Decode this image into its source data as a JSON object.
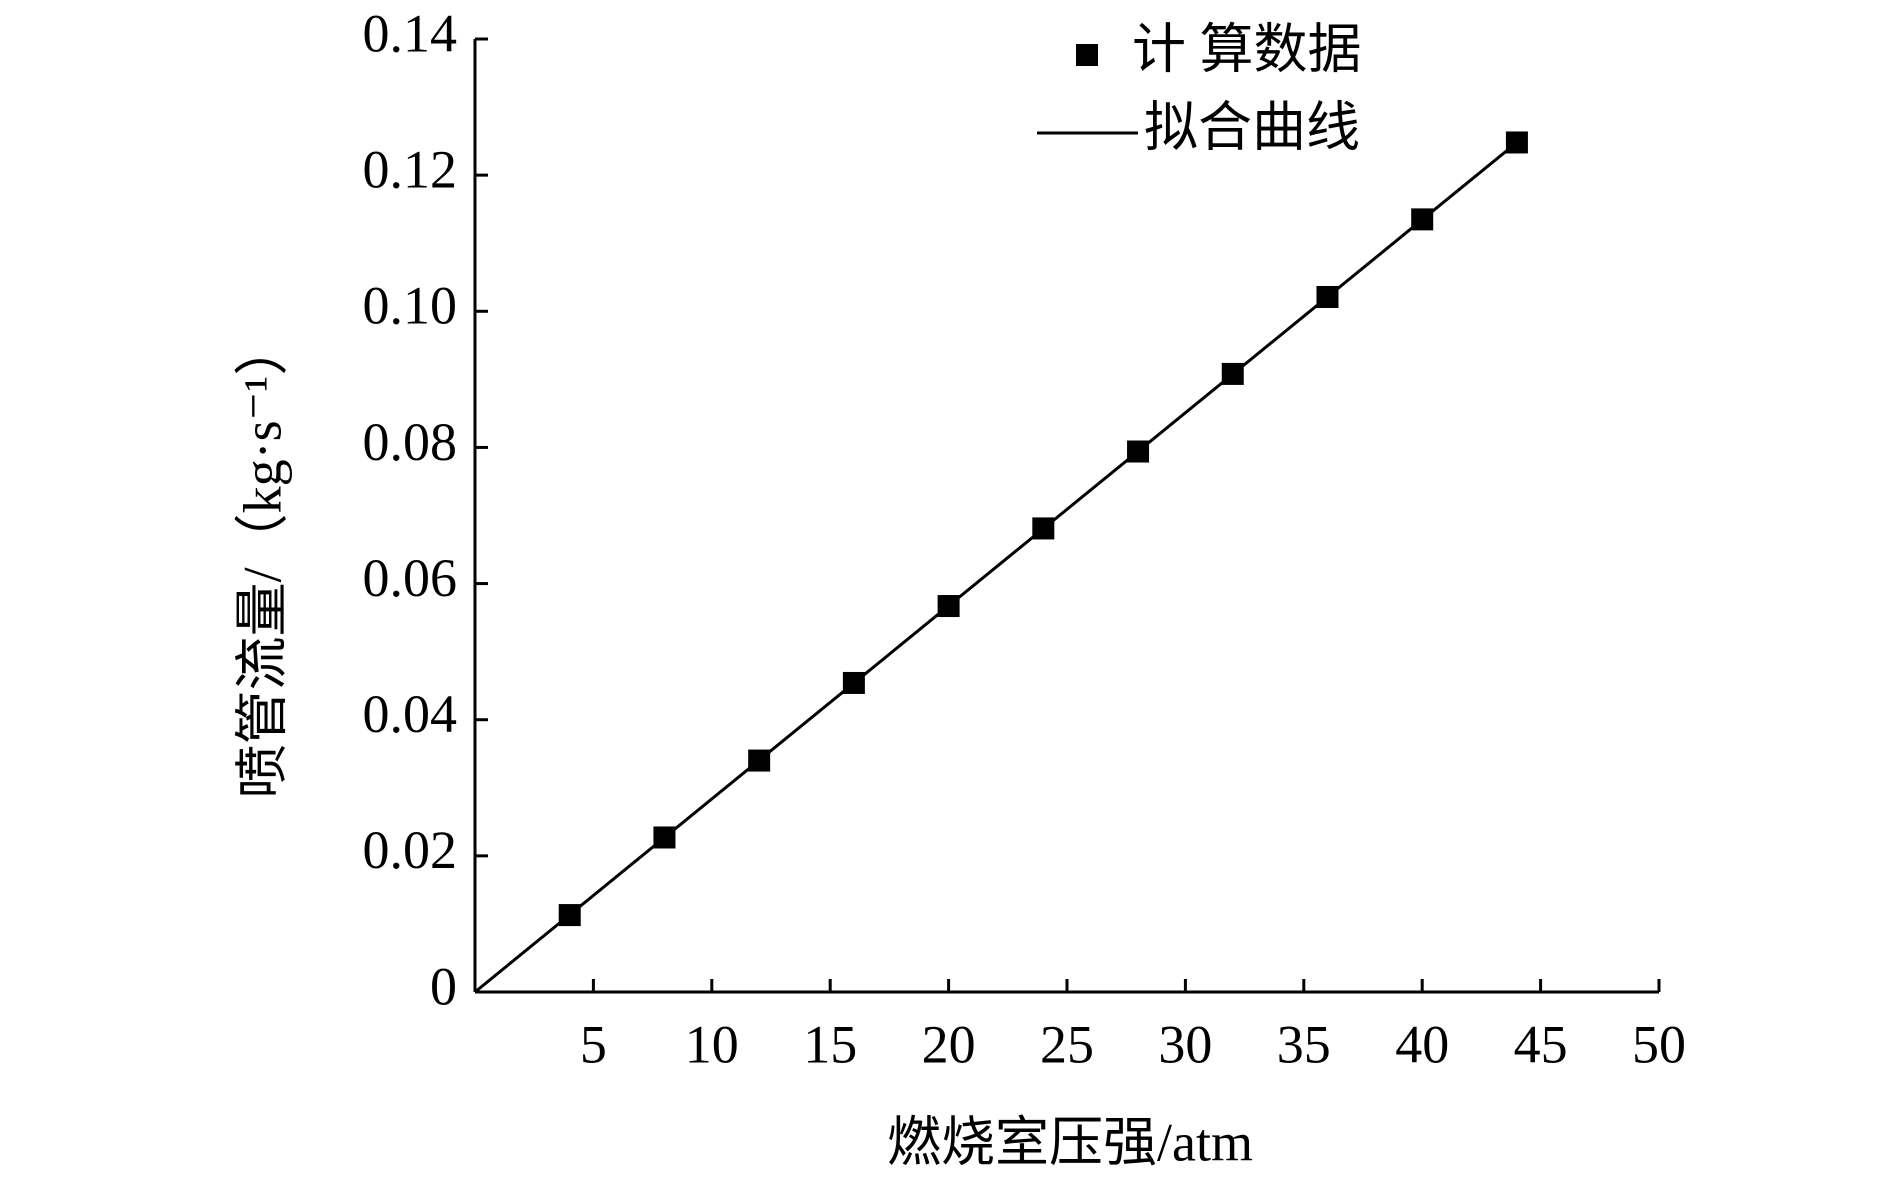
{
  "chart_data": {
    "type": "scatter",
    "xlabel": "燃烧室压强/atm",
    "ylabel": "喷管流量/（kg·s⁻¹）",
    "xlim": [
      0,
      50
    ],
    "xticks": [
      5,
      10,
      15,
      20,
      25,
      30,
      35,
      40,
      45,
      50
    ],
    "ylim": [
      0,
      0.14
    ],
    "yticks": [
      0,
      0.02,
      0.04,
      0.06,
      0.08,
      {
        "value": 0.1,
        "label": "0.10"
      },
      0.12,
      0.14
    ],
    "series": [
      {
        "name": "计 算数据",
        "color": "#000000",
        "mode": "markers",
        "x": [
          4,
          8,
          12,
          16,
          20,
          24,
          28,
          32,
          36,
          40,
          44
        ],
        "values": [
          0.0113,
          0.0227,
          0.034,
          0.0454,
          0.0567,
          0.0681,
          0.0794,
          0.0908,
          0.1021,
          0.1135,
          0.1248
        ]
      },
      {
        "name": "拟合曲线",
        "color": "#000000",
        "mode": "line",
        "x": [
          0,
          44
        ],
        "values": [
          0,
          0.1248
        ]
      }
    ]
  }
}
